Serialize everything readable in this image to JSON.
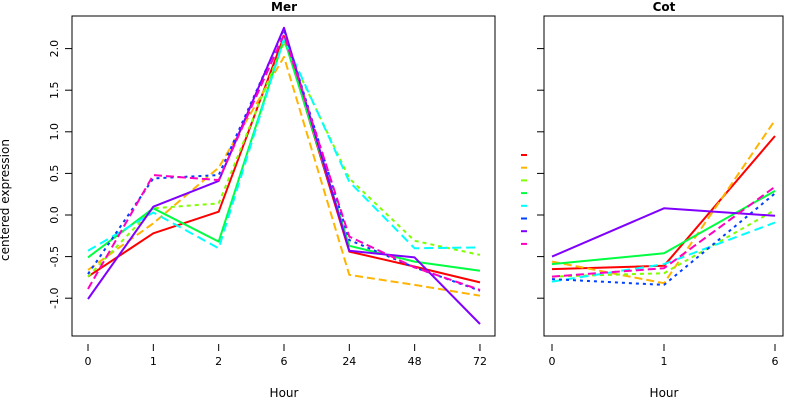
{
  "chart_data": {
    "type": "line",
    "ylabel": "centered expression",
    "ylim": [
      -1.45,
      2.3
    ],
    "yticks": [
      -1.0,
      -0.5,
      0.0,
      0.5,
      1.0,
      1.5,
      2.0
    ],
    "ytick_labels": [
      "-1.0",
      "-0.5",
      "0.0",
      "0.5",
      "1.0",
      "1.5",
      "2.0"
    ],
    "grid": false,
    "legend": {
      "placement": "between-panels",
      "entries": [
        {
          "color": "#ff0000",
          "style": "solid"
        },
        {
          "color": "#ffb400",
          "style": "dashed"
        },
        {
          "color": "#7fff00",
          "style": "short-dashed"
        },
        {
          "color": "#00ff40",
          "style": "solid"
        },
        {
          "color": "#00ffff",
          "style": "long-dashed"
        },
        {
          "color": "#0040ff",
          "style": "dotted"
        },
        {
          "color": "#8000ff",
          "style": "solid"
        },
        {
          "color": "#ff00c0",
          "style": "dashed"
        }
      ]
    },
    "panels": [
      {
        "title": "Mer",
        "xlabel": "Hour",
        "categories": [
          "0",
          "1",
          "2",
          "6",
          "24",
          "48",
          "72"
        ],
        "series": [
          {
            "name": "red",
            "color": "#ff0000",
            "style": "solid",
            "values": [
              -0.74,
              -0.22,
              0.04,
              2.15,
              -0.44,
              -0.62,
              -0.81
            ]
          },
          {
            "name": "orange",
            "color": "#ffb400",
            "style": "dashed",
            "values": [
              -0.66,
              -0.1,
              0.57,
              1.9,
              -0.72,
              -0.84,
              -0.97
            ]
          },
          {
            "name": "yellow-green",
            "color": "#7fff00",
            "style": "short-dashed",
            "values": [
              -0.74,
              0.08,
              0.14,
              2.08,
              0.44,
              -0.31,
              -0.48
            ]
          },
          {
            "name": "green",
            "color": "#00ff40",
            "style": "solid",
            "values": [
              -0.51,
              0.08,
              -0.32,
              2.12,
              -0.37,
              -0.56,
              -0.67
            ]
          },
          {
            "name": "cyan",
            "color": "#00ffff",
            "style": "long-dashed",
            "values": [
              -0.43,
              0.03,
              -0.4,
              2.12,
              0.4,
              -0.4,
              -0.39
            ]
          },
          {
            "name": "blue",
            "color": "#0040ff",
            "style": "dotted",
            "values": [
              -0.71,
              0.44,
              0.48,
              2.23,
              -0.3,
              -0.63,
              -0.91
            ]
          },
          {
            "name": "purple",
            "color": "#8000ff",
            "style": "solid",
            "values": [
              -1.01,
              0.1,
              0.41,
              2.25,
              -0.43,
              -0.51,
              -1.31
            ]
          },
          {
            "name": "magenta",
            "color": "#ff00c0",
            "style": "dashed",
            "values": [
              -0.89,
              0.48,
              0.42,
              2.17,
              -0.26,
              -0.63,
              -0.9
            ]
          }
        ]
      },
      {
        "title": "Cot",
        "xlabel": "Hour",
        "categories": [
          "0",
          "1",
          "6"
        ],
        "series": [
          {
            "name": "red",
            "color": "#ff0000",
            "style": "solid",
            "values": [
              -0.65,
              -0.61,
              0.95
            ]
          },
          {
            "name": "orange",
            "color": "#ffb400",
            "style": "dashed",
            "values": [
              -0.56,
              -0.82,
              1.14
            ]
          },
          {
            "name": "yellow-green",
            "color": "#7fff00",
            "style": "short-dashed",
            "values": [
              -0.74,
              -0.7,
              0.06
            ]
          },
          {
            "name": "green",
            "color": "#00ff40",
            "style": "solid",
            "values": [
              -0.59,
              -0.46,
              0.29
            ]
          },
          {
            "name": "cyan",
            "color": "#00ffff",
            "style": "long-dashed",
            "values": [
              -0.8,
              -0.59,
              -0.09
            ]
          },
          {
            "name": "blue",
            "color": "#0040ff",
            "style": "dotted",
            "values": [
              -0.77,
              -0.84,
              0.26
            ]
          },
          {
            "name": "purple",
            "color": "#8000ff",
            "style": "solid",
            "values": [
              -0.5,
              0.08,
              -0.01
            ]
          },
          {
            "name": "magenta",
            "color": "#ff00c0",
            "style": "dashed",
            "values": [
              -0.74,
              -0.64,
              0.34
            ]
          }
        ]
      }
    ]
  }
}
